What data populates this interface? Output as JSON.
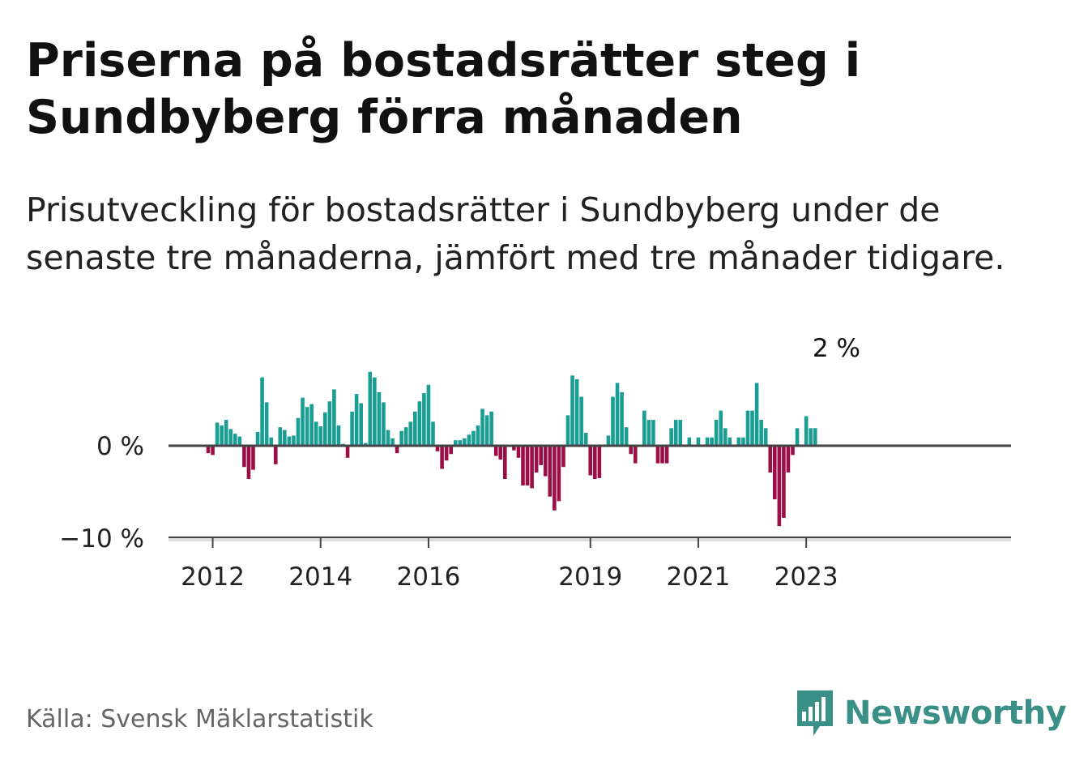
{
  "title": "Priserna på bostadsrätter steg i Sundbyberg förra månaden",
  "subtitle": "Prisutveckling för bostadsrätter i Sundbyberg under de senaste tre månaderna, jämfört med tre månader tidigare.",
  "source": "Källa: Svensk Mäklarstatistik",
  "brand": "Newsworthy",
  "colors": {
    "positive": "#1a9e93",
    "negative": "#9b0f46",
    "axis": "#444444",
    "brand": "#3a8f86"
  },
  "chart_data": {
    "type": "bar",
    "unit": "%",
    "start": "2011-12",
    "ylim": [
      -10,
      8
    ],
    "y_ticks": [
      {
        "value": 0,
        "label": "0 %"
      },
      {
        "value": -10,
        "label": "−10 %"
      }
    ],
    "x_ticks": [
      {
        "index": 1,
        "label": "2012"
      },
      {
        "index": 25,
        "label": "2014"
      },
      {
        "index": 49,
        "label": "2016"
      },
      {
        "index": 85,
        "label": "2019"
      },
      {
        "index": 109,
        "label": "2021"
      },
      {
        "index": 133,
        "label": "2023"
      }
    ],
    "annotation": {
      "index": 139,
      "label": "2 %"
    },
    "values": [
      -0.8,
      -1.0,
      2.5,
      2.2,
      2.8,
      1.8,
      1.3,
      1.0,
      -2.3,
      -3.6,
      -2.6,
      1.5,
      7.4,
      4.7,
      0.9,
      -2.0,
      2.0,
      1.7,
      1.0,
      1.1,
      3.0,
      5.2,
      4.2,
      4.5,
      2.6,
      2.1,
      3.6,
      4.8,
      6.1,
      2.2,
      0.2,
      -1.3,
      3.7,
      5.6,
      4.6,
      0.3,
      8.0,
      7.4,
      5.8,
      4.7,
      1.7,
      0.8,
      -0.8,
      1.6,
      2.0,
      2.6,
      3.7,
      4.8,
      5.7,
      6.6,
      2.6,
      -0.6,
      -2.5,
      -1.6,
      -0.9,
      0.6,
      0.6,
      0.8,
      1.2,
      1.6,
      2.2,
      4.0,
      3.3,
      3.7,
      -1.1,
      -1.5,
      -3.6,
      0.0,
      -0.5,
      -1.3,
      -4.3,
      -4.3,
      -4.6,
      -2.9,
      -2.1,
      -3.3,
      -5.5,
      -7.0,
      -6.0,
      -2.3,
      3.3,
      7.6,
      7.2,
      5.3,
      1.4,
      -3.2,
      -3.6,
      -3.5,
      -0.1,
      1.1,
      5.3,
      6.8,
      5.8,
      2.0,
      -0.9,
      -1.9,
      0.0,
      3.8,
      2.8,
      2.8,
      -1.9,
      -1.9,
      -1.9,
      1.9,
      2.8,
      2.8,
      0.0,
      0.9,
      0.0,
      0.9,
      0.0,
      0.9,
      0.9,
      2.8,
      3.8,
      1.9,
      0.9,
      0.0,
      0.9,
      0.9,
      3.8,
      3.8,
      6.8,
      2.8,
      1.9,
      -2.9,
      -5.8,
      -8.7,
      -7.8,
      -2.9,
      -1.0,
      1.9,
      0.0,
      3.2,
      1.9,
      1.9
    ]
  }
}
